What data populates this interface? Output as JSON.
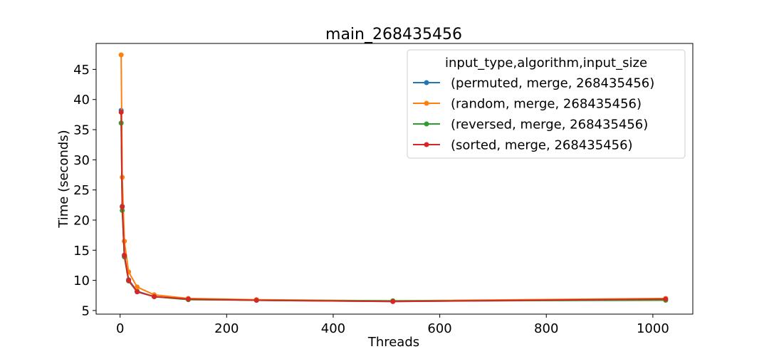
{
  "chart_data": {
    "type": "line",
    "title": "main_268435456",
    "xlabel": "Threads",
    "ylabel": "Time (seconds)",
    "xlim": [
      -45,
      1075
    ],
    "ylim": [
      4.4,
      49.3
    ],
    "xticks": [
      0,
      200,
      400,
      600,
      800,
      1000
    ],
    "yticks": [
      5,
      10,
      15,
      20,
      25,
      30,
      35,
      40,
      45
    ],
    "grid": false,
    "legend": {
      "title": "input_type,algorithm,input_size",
      "placement": "top-right"
    },
    "x": [
      2,
      4,
      8,
      16,
      32,
      64,
      128,
      256,
      512,
      1024
    ],
    "series": [
      {
        "name": "(permuted, merge, 268435456)",
        "color": "#1f77b4",
        "values": [
          38.2,
          22.3,
          14.2,
          10.1,
          8.2,
          7.3,
          6.9,
          6.7,
          6.5,
          6.8
        ]
      },
      {
        "name": "(random, merge, 268435456)",
        "color": "#ff7f0e",
        "values": [
          47.4,
          27.1,
          16.5,
          11.4,
          8.9,
          7.6,
          7.0,
          6.8,
          6.6,
          7.0
        ]
      },
      {
        "name": "(reversed, merge, 268435456)",
        "color": "#2ca02c",
        "values": [
          36.1,
          21.6,
          13.9,
          9.9,
          8.1,
          7.3,
          6.8,
          6.7,
          6.6,
          6.7
        ]
      },
      {
        "name": "(sorted, merge, 268435456)",
        "color": "#d62728",
        "values": [
          37.9,
          22.2,
          14.1,
          10.0,
          8.1,
          7.3,
          6.9,
          6.7,
          6.5,
          6.9
        ]
      }
    ]
  }
}
